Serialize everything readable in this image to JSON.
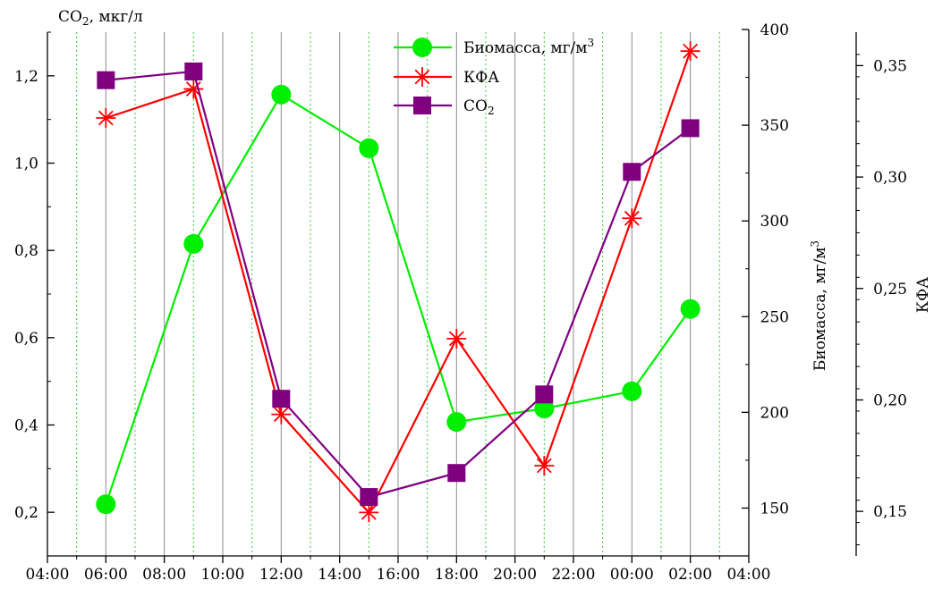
{
  "chart_data": {
    "type": "line",
    "x_tick_labels": [
      "04:00",
      "06:00",
      "08:00",
      "10:00",
      "12:00",
      "14:00",
      "16:00",
      "18:00",
      "20:00",
      "22:00",
      "00:00",
      "02:00",
      "04:00"
    ],
    "x_categories": [
      "06:00",
      "09:00",
      "12:00",
      "15:00",
      "18:00",
      "21:00",
      "00:00",
      "02:00"
    ],
    "grid": true,
    "legend_position": "top-center",
    "axes": {
      "left": {
        "label": "CO₂, мкг/л",
        "label_main": "CO",
        "label_sub": "2",
        "label_rest": ", мкг/л",
        "range": [
          0.1,
          1.3
        ],
        "ticks": [
          "0,2",
          "0,4",
          "0,6",
          "0,8",
          "1,0",
          "1,2"
        ]
      },
      "right1": {
        "label": "Биомасса, мг/м³",
        "label_main": "Биомасса, мг/м",
        "label_sup": "3",
        "range": [
          125,
          400
        ],
        "ticks": [
          "150",
          "200",
          "250",
          "300",
          "350",
          "400"
        ]
      },
      "right2": {
        "label": "КФА",
        "range": [
          0.13,
          0.365
        ],
        "ticks": [
          "0,15",
          "0,20",
          "0,25",
          "0,30",
          "0,35"
        ]
      }
    },
    "series": [
      {
        "name": "Биомасса, мг/м³",
        "name_main": "Биомасса, мг/м",
        "name_sup": "3",
        "axis": "right1",
        "color": "#00ee00",
        "marker": "circle",
        "values": [
          152,
          288,
          366,
          338,
          195,
          202,
          211,
          254
        ]
      },
      {
        "name": "КФА",
        "axis": "right2",
        "color": "#ff0000",
        "marker": "star",
        "values": [
          0.3265,
          0.3395,
          0.1935,
          0.1495,
          0.2275,
          0.1705,
          0.2815,
          0.3565
        ]
      },
      {
        "name": "CO₂",
        "name_main": "CO",
        "name_sub": "2",
        "axis": "left",
        "color": "#7f007f",
        "marker": "square",
        "values": [
          1.19,
          1.21,
          0.46,
          0.235,
          0.29,
          0.47,
          0.98,
          1.08
        ]
      }
    ]
  }
}
